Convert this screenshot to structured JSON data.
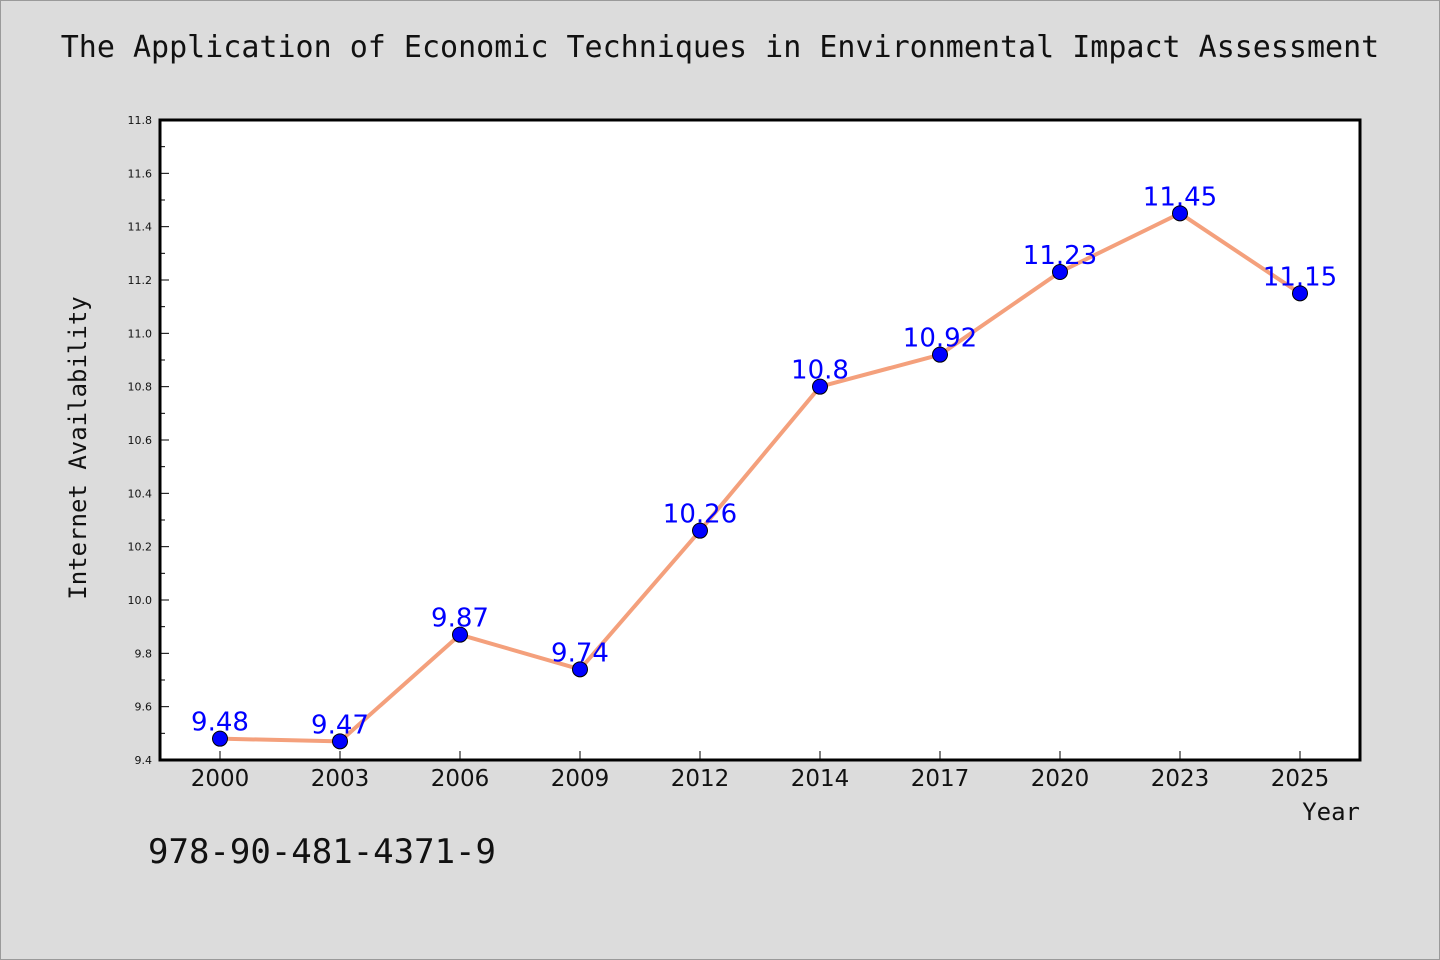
{
  "title": "The Application of Economic Techniques in Environmental Impact Assessment",
  "isbn": "978-90-481-4371-9",
  "colors": {
    "background": "#dcdcdc",
    "plot_bg": "#ffffff",
    "line": "#f4a07c",
    "marker": "#0000ff",
    "data_label": "#0000ff"
  },
  "chart_data": {
    "type": "line",
    "title": "The Application of Economic Techniques in Environmental Impact Assessment",
    "xlabel": "Year",
    "ylabel": "Internet Availability",
    "categories": [
      "2000",
      "2003",
      "2006",
      "2009",
      "2012",
      "2014",
      "2017",
      "2020",
      "2023",
      "2025"
    ],
    "values": [
      9.48,
      9.47,
      9.87,
      9.74,
      10.26,
      10.8,
      10.92,
      11.23,
      11.45,
      11.15
    ],
    "data_labels": [
      "9.48",
      "9.47",
      "9.87",
      "9.74",
      "10.26",
      "10.8",
      "10.92",
      "11.23",
      "11.45",
      "11.15"
    ],
    "ylim": [
      9.4,
      11.8
    ],
    "yticks": [
      "9.4",
      "9.6",
      "9.8",
      "10.0",
      "10.2",
      "10.4",
      "10.6",
      "10.8",
      "11.0",
      "11.2",
      "11.4",
      "11.6",
      "11.8"
    ],
    "grid": false,
    "legend": "none"
  }
}
